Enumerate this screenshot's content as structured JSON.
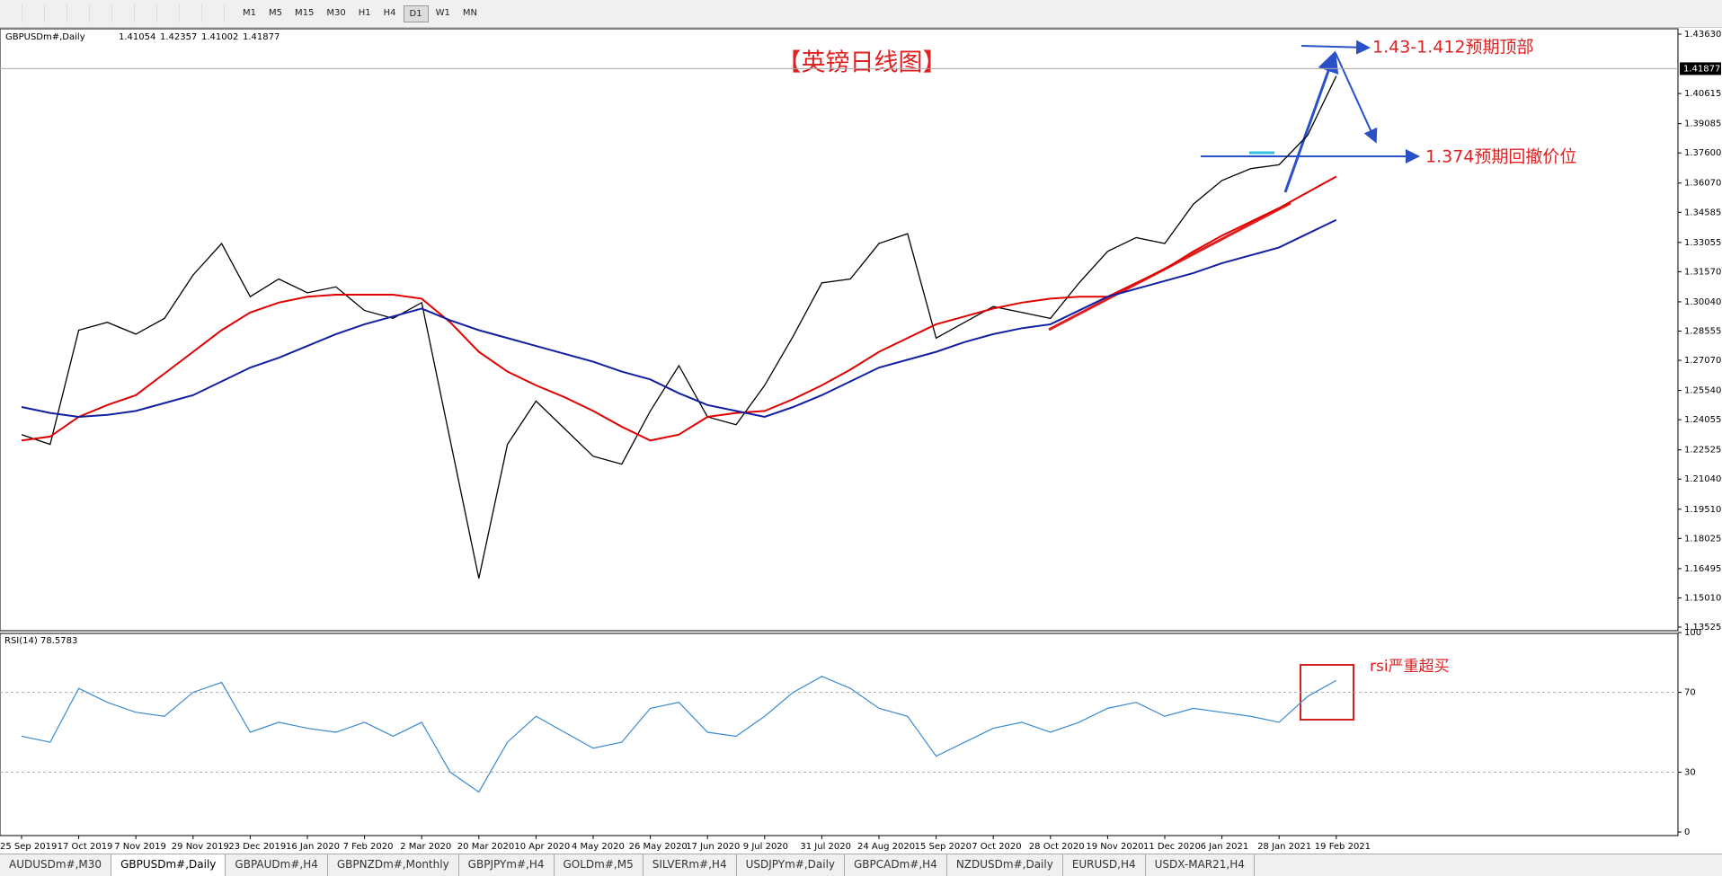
{
  "toolbar": {
    "timeframes": [
      "M1",
      "M5",
      "M15",
      "M30",
      "H1",
      "H4",
      "D1",
      "W1",
      "MN"
    ]
  },
  "tabs": [
    "AUDUSDm#,M30",
    "GBPUSDm#,Daily",
    "GBPAUDm#,H4",
    "GBPNZDm#,Monthly",
    "GBPJPYm#,H4",
    "GOLDm#,M5",
    "SILVERm#,H4",
    "USDJPYm#,Daily",
    "GBPCADm#,H4",
    "NZDUSDm#,Daily",
    "EURUSD,H4",
    "USDX-MAR21,H4"
  ],
  "chart_data": {
    "type": "line",
    "title": "【英镑日线图】",
    "symbol_label": "GBPUSDm#,Daily",
    "ohlc": [
      1.41054,
      1.42357,
      1.41002,
      1.41877
    ],
    "last_price": 1.41877,
    "annotations": [
      "1.43-1.412预期顶部",
      "1.374预期回撤价位",
      "rsi严重超买"
    ],
    "categories": [
      "25 Sep 2019",
      null,
      "17 Oct 2019",
      null,
      "7 Nov 2019",
      null,
      "29 Nov 2019",
      null,
      "23 Dec 2019",
      null,
      "16 Jan 2020",
      null,
      "7 Feb 2020",
      null,
      "2 Mar 2020",
      null,
      "20 Mar 2020",
      null,
      "10 Apr 2020",
      null,
      "4 May 2020",
      null,
      "26 May 2020",
      null,
      "17 Jun 2020",
      null,
      "9 Jul 2020",
      null,
      "31 Jul 2020",
      null,
      "24 Aug 2020",
      null,
      "15 Sep 2020",
      null,
      "7 Oct 2020",
      null,
      "28 Oct 2020",
      null,
      "19 Nov 2020",
      null,
      "11 Dec 2020",
      null,
      "6 Jan 2021",
      null,
      "28 Jan 2021",
      null,
      "19 Feb 2021"
    ],
    "series": [
      {
        "color": "#000000",
        "values": [
          1.233,
          1.228,
          1.286,
          1.29,
          1.284,
          1.292,
          1.314,
          1.33,
          1.303,
          1.312,
          1.305,
          1.308,
          1.296,
          1.292,
          1.3,
          1.23,
          1.16,
          1.228,
          1.25,
          1.236,
          1.222,
          1.218,
          1.245,
          1.268,
          1.242,
          1.238,
          1.258,
          1.283,
          1.31,
          1.312,
          1.33,
          1.335,
          1.282,
          1.29,
          1.298,
          1.295,
          1.292,
          1.31,
          1.326,
          1.333,
          1.33,
          1.35,
          1.362,
          1.368,
          1.37,
          1.385,
          1.415
        ]
      },
      {
        "color": "#e00000",
        "values": [
          1.23,
          1.232,
          1.242,
          1.248,
          1.253,
          1.264,
          1.275,
          1.286,
          1.295,
          1.3,
          1.303,
          1.304,
          1.304,
          1.304,
          1.302,
          1.29,
          1.275,
          1.265,
          1.258,
          1.252,
          1.245,
          1.237,
          1.23,
          1.233,
          1.242,
          1.244,
          1.245,
          1.251,
          1.258,
          1.266,
          1.275,
          1.282,
          1.289,
          1.293,
          1.297,
          1.3,
          1.302,
          1.303,
          1.303,
          1.31,
          1.317,
          1.326,
          1.334,
          1.341,
          1.348,
          1.356,
          1.364
        ]
      },
      {
        "color": "#1020a0",
        "values": [
          1.247,
          1.244,
          1.242,
          1.243,
          1.245,
          1.249,
          1.253,
          1.26,
          1.267,
          1.272,
          1.278,
          1.284,
          1.289,
          1.293,
          1.297,
          1.291,
          1.286,
          1.282,
          1.278,
          1.274,
          1.27,
          1.265,
          1.261,
          1.254,
          1.248,
          1.245,
          1.242,
          1.247,
          1.253,
          1.26,
          1.267,
          1.271,
          1.275,
          1.28,
          1.284,
          1.287,
          1.289,
          1.296,
          1.303,
          1.307,
          1.311,
          1.315,
          1.32,
          1.324,
          1.328,
          1.335,
          1.342
        ]
      }
    ],
    "ylim": [
      1.13525,
      1.4363
    ],
    "yticks": [
      {
        "value": 1.4363,
        "label": "1.43630"
      },
      {
        "value": 1.40615,
        "label": "1.40615"
      },
      {
        "value": 1.39085,
        "label": "1.39085"
      },
      {
        "value": 1.376,
        "label": "1.37600"
      },
      {
        "value": 1.3607,
        "label": "1.36070"
      },
      {
        "value": 1.34585,
        "label": "1.34585"
      },
      {
        "value": 1.33055,
        "label": "1.33055"
      },
      {
        "value": 1.3157,
        "label": "1.31570"
      },
      {
        "value": 1.3004,
        "label": "1.30040"
      },
      {
        "value": 1.28555,
        "label": "1.28555"
      },
      {
        "value": 1.2707,
        "label": "1.27070"
      },
      {
        "value": 1.2554,
        "label": "1.25540"
      },
      {
        "value": 1.24055,
        "label": "1.24055"
      },
      {
        "value": 1.22525,
        "label": "1.22525"
      },
      {
        "value": 1.2104,
        "label": "1.21040"
      },
      {
        "value": 1.1951,
        "label": "1.19510"
      },
      {
        "value": 1.18025,
        "label": "1.18025"
      },
      {
        "value": 1.16495,
        "label": "1.16495"
      },
      {
        "value": 1.1501,
        "label": "1.15010"
      },
      {
        "value": 1.13525,
        "label": "1.13525"
      }
    ],
    "grid": false,
    "rsi": {
      "label": "RSI(14)",
      "last": 78.5783,
      "color": "#3a8ad0",
      "ylim": [
        0,
        100
      ],
      "yticks": [
        0,
        30,
        70,
        100
      ],
      "values": [
        48,
        45,
        72,
        65,
        60,
        58,
        70,
        75,
        50,
        55,
        52,
        50,
        55,
        48,
        55,
        30,
        20,
        45,
        58,
        50,
        42,
        45,
        62,
        65,
        50,
        48,
        58,
        70,
        78,
        72,
        62,
        58,
        38,
        45,
        52,
        55,
        50,
        55,
        62,
        65,
        58,
        62,
        60,
        58,
        55,
        68,
        76
      ]
    }
  }
}
